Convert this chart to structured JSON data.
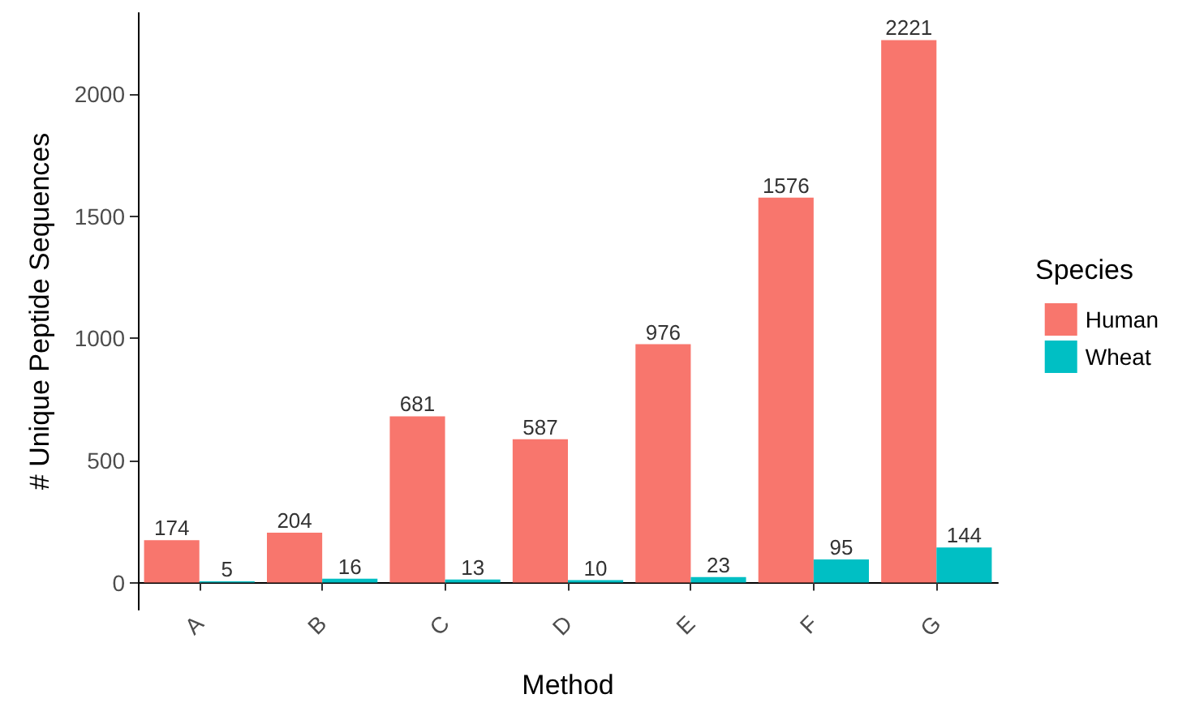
{
  "chart_data": {
    "type": "bar",
    "xlabel": "Method",
    "ylabel": "# Unique Peptide Sequences",
    "legend_title": "Species",
    "categories": [
      "A",
      "B",
      "C",
      "D",
      "E",
      "F",
      "G"
    ],
    "series": [
      {
        "name": "Human",
        "color": "#f8766d",
        "values": [
          174,
          204,
          681,
          587,
          976,
          1576,
          2221
        ]
      },
      {
        "name": "Wheat",
        "color": "#00bfc4",
        "values": [
          5,
          16,
          13,
          10,
          23,
          95,
          144
        ]
      }
    ],
    "ylim": [
      -111,
      2332
    ],
    "yticks": [
      0,
      500,
      1000,
      1500,
      2000
    ],
    "grid": false,
    "legend": "right",
    "data_labels": true
  }
}
